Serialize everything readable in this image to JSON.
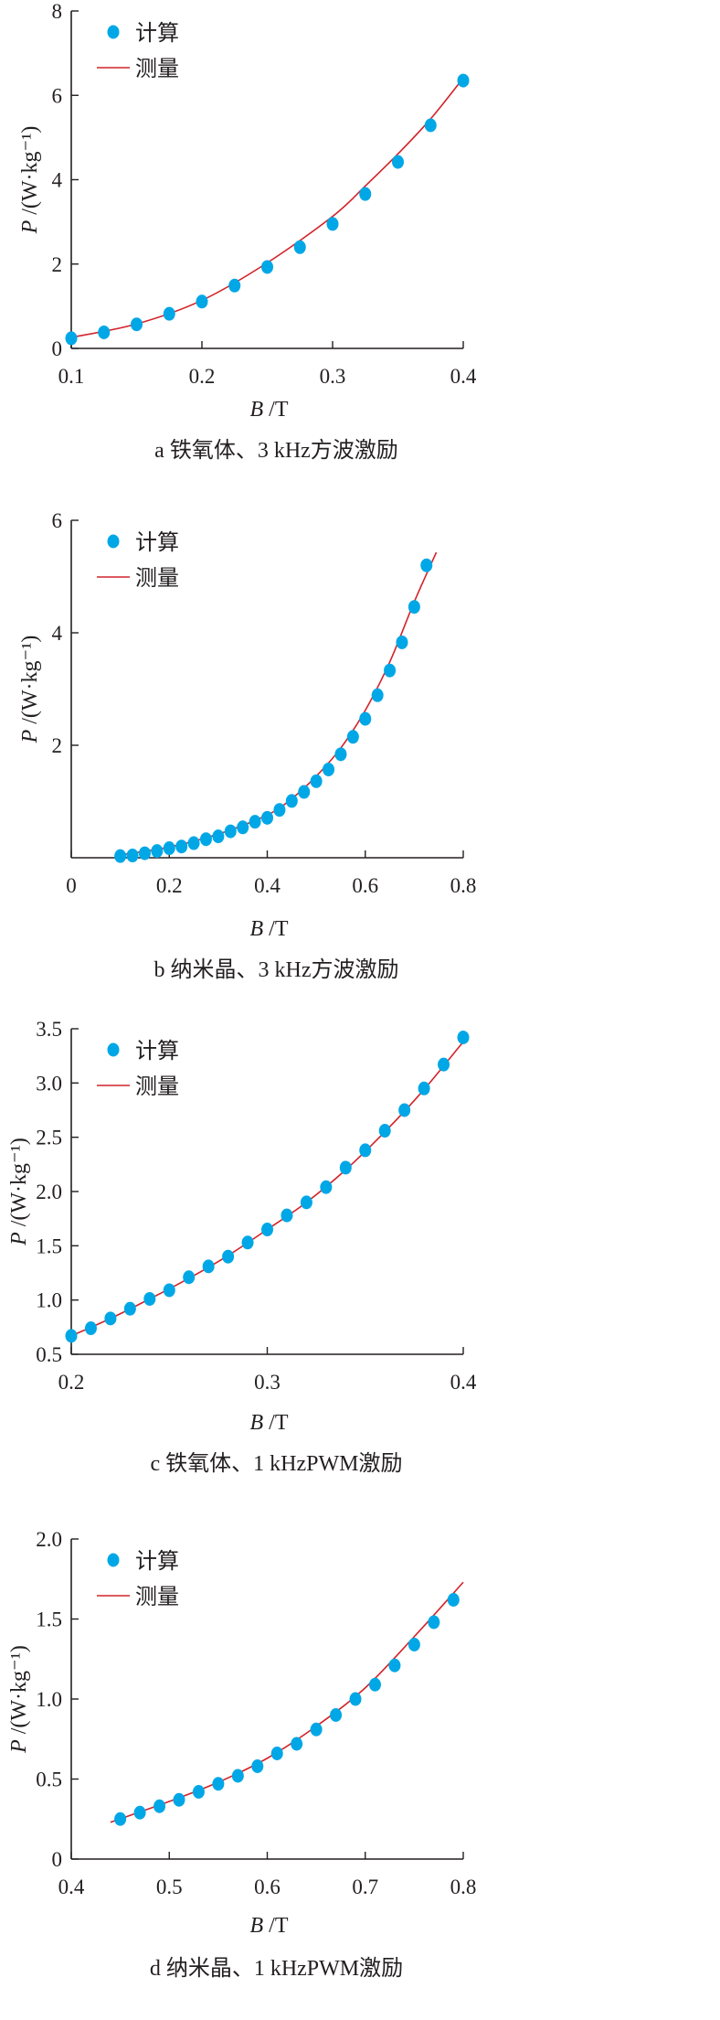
{
  "colors": {
    "points": "#00a7e6",
    "line": "#d2232a",
    "axis": "#231f20"
  },
  "legend": {
    "calc": "计算",
    "meas": "测量"
  },
  "chart_data": [
    {
      "type": "scatter+line",
      "caption": "a  铁氧体、3 kHz方波激励",
      "xlabel_var": "B",
      "xlabel_unit": " /T",
      "ylabel_var": "P",
      "ylabel_unit": " /(W·kg⁻¹)",
      "xlim": [
        0.1,
        0.4
      ],
      "ylim": [
        0,
        8
      ],
      "xticks": [
        0.1,
        0.2,
        0.3,
        0.4
      ],
      "xtick_labels": [
        "0.1",
        "0.2",
        "0.3",
        "0.4"
      ],
      "yticks": [
        0,
        2,
        4,
        6,
        8
      ],
      "ytick_labels": [
        "0",
        "2",
        "4",
        "6",
        "8"
      ],
      "series": [
        {
          "name": "计算",
          "kind": "points",
          "x": [
            0.1,
            0.125,
            0.15,
            0.175,
            0.2,
            0.225,
            0.25,
            0.275,
            0.3,
            0.325,
            0.35,
            0.375,
            0.4
          ],
          "y": [
            0.24,
            0.38,
            0.57,
            0.82,
            1.11,
            1.49,
            1.93,
            2.4,
            2.95,
            3.66,
            4.42,
            5.29,
            6.35
          ]
        },
        {
          "name": "测量",
          "kind": "line",
          "x": [
            0.1,
            0.15,
            0.2,
            0.25,
            0.3,
            0.325,
            0.35,
            0.375,
            0.4
          ],
          "y": [
            0.26,
            0.58,
            1.14,
            2.03,
            3.13,
            3.85,
            4.61,
            5.44,
            6.41
          ]
        }
      ]
    },
    {
      "type": "scatter+line",
      "caption": "b  纳米晶、3 kHz方波激励",
      "xlabel_var": "B",
      "xlabel_unit": " /T",
      "ylabel_var": "P",
      "ylabel_unit": " /(W·kg⁻¹)",
      "xlim": [
        0,
        0.8
      ],
      "ylim": [
        0,
        6
      ],
      "xticks": [
        0,
        0.2,
        0.4,
        0.6,
        0.8
      ],
      "xtick_labels": [
        "0",
        "0.2",
        "0.4",
        "0.6",
        "0.8"
      ],
      "yticks": [
        2,
        4,
        6
      ],
      "ytick_labels": [
        "2",
        "4",
        "6"
      ],
      "series": [
        {
          "name": "计算",
          "kind": "points",
          "x": [
            0.1,
            0.125,
            0.15,
            0.175,
            0.2,
            0.225,
            0.25,
            0.275,
            0.3,
            0.325,
            0.35,
            0.375,
            0.4,
            0.425,
            0.45,
            0.475,
            0.5,
            0.525,
            0.55,
            0.575,
            0.6,
            0.625,
            0.65,
            0.675,
            0.7,
            0.725
          ],
          "y": [
            0.03,
            0.04,
            0.08,
            0.12,
            0.17,
            0.2,
            0.26,
            0.33,
            0.38,
            0.47,
            0.54,
            0.64,
            0.71,
            0.85,
            1.01,
            1.17,
            1.36,
            1.57,
            1.84,
            2.15,
            2.47,
            2.89,
            3.33,
            3.83,
            4.46,
            5.2
          ]
        },
        {
          "name": "测量",
          "kind": "line",
          "x": [
            0.1,
            0.2,
            0.3,
            0.4,
            0.45,
            0.5,
            0.55,
            0.6,
            0.65,
            0.7,
            0.745
          ],
          "y": [
            0.05,
            0.19,
            0.42,
            0.76,
            1.05,
            1.45,
            1.95,
            2.62,
            3.48,
            4.55,
            5.43
          ]
        }
      ]
    },
    {
      "type": "scatter+line",
      "caption": "c  铁氧体、1 kHzPWM激励",
      "xlabel_var": "B",
      "xlabel_unit": " /T",
      "ylabel_var": "P",
      "ylabel_unit": " /(W·kg⁻¹)",
      "xlim": [
        0.2,
        0.4
      ],
      "ylim": [
        0.5,
        3.5
      ],
      "xticks": [
        0.2,
        0.3,
        0.4
      ],
      "xtick_labels": [
        "0.2",
        "0.3",
        "0.4"
      ],
      "yticks": [
        0.5,
        1.0,
        1.5,
        2.0,
        2.5,
        3.0,
        3.5
      ],
      "ytick_labels": [
        "0.5",
        "1.0",
        "1.5",
        "2.0",
        "2.5",
        "3.0",
        "3.5"
      ],
      "series": [
        {
          "name": "计算",
          "kind": "points",
          "x": [
            0.2,
            0.21,
            0.22,
            0.23,
            0.24,
            0.25,
            0.26,
            0.27,
            0.28,
            0.29,
            0.3,
            0.31,
            0.32,
            0.33,
            0.34,
            0.35,
            0.36,
            0.37,
            0.38,
            0.39,
            0.4
          ],
          "y": [
            0.67,
            0.74,
            0.83,
            0.92,
            1.01,
            1.09,
            1.21,
            1.31,
            1.4,
            1.53,
            1.65,
            1.78,
            1.9,
            2.04,
            2.22,
            2.38,
            2.56,
            2.75,
            2.95,
            3.17,
            3.42
          ]
        },
        {
          "name": "测量",
          "kind": "line",
          "x": [
            0.2,
            0.22,
            0.24,
            0.26,
            0.28,
            0.3,
            0.32,
            0.34,
            0.36,
            0.38,
            0.4
          ],
          "y": [
            0.67,
            0.83,
            1.01,
            1.2,
            1.41,
            1.65,
            1.9,
            2.2,
            2.55,
            2.94,
            3.38
          ]
        }
      ]
    },
    {
      "type": "scatter+line",
      "caption": "d  纳米晶、1 kHzPWM激励",
      "xlabel_var": "B",
      "xlabel_unit": " /T",
      "ylabel_var": "P",
      "ylabel_unit": " /(W·kg⁻¹)",
      "xlim": [
        0.4,
        0.8
      ],
      "ylim": [
        0,
        2.0
      ],
      "xticks": [
        0.4,
        0.5,
        0.6,
        0.7,
        0.8
      ],
      "xtick_labels": [
        "0.4",
        "0.5",
        "0.6",
        "0.7",
        "0.8"
      ],
      "yticks": [
        0,
        0.5,
        1.0,
        1.5,
        2.0
      ],
      "ytick_labels": [
        "0",
        "0.5",
        "1.0",
        "1.5",
        "2.0"
      ],
      "series": [
        {
          "name": "计算",
          "kind": "points",
          "x": [
            0.45,
            0.47,
            0.49,
            0.51,
            0.53,
            0.55,
            0.57,
            0.59,
            0.61,
            0.63,
            0.65,
            0.67,
            0.69,
            0.71,
            0.73,
            0.75,
            0.77,
            0.79
          ],
          "y": [
            0.25,
            0.29,
            0.33,
            0.37,
            0.42,
            0.47,
            0.52,
            0.58,
            0.66,
            0.72,
            0.81,
            0.9,
            1.0,
            1.09,
            1.21,
            1.34,
            1.48,
            1.62
          ]
        },
        {
          "name": "测量",
          "kind": "line",
          "x": [
            0.44,
            0.5,
            0.55,
            0.6,
            0.65,
            0.7,
            0.75,
            0.8
          ],
          "y": [
            0.23,
            0.36,
            0.48,
            0.63,
            0.83,
            1.07,
            1.39,
            1.73
          ]
        }
      ]
    }
  ]
}
